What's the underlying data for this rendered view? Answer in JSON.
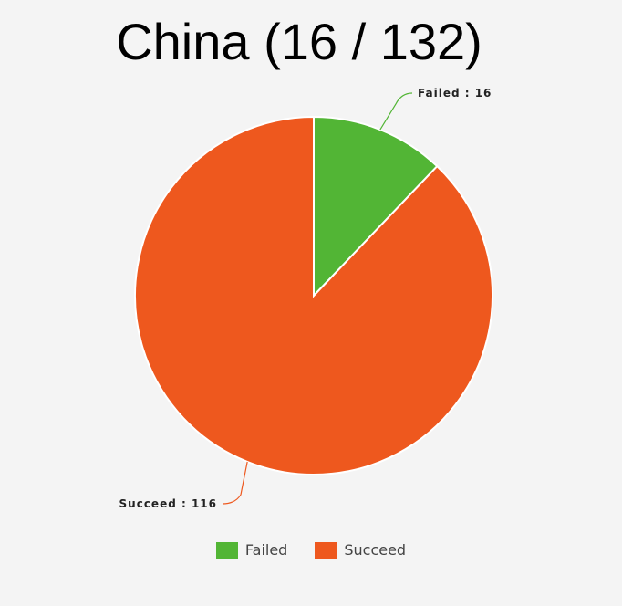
{
  "chart_data": {
    "type": "pie",
    "title": "China (16 / 132)",
    "categories": [
      "Failed",
      "Succeed"
    ],
    "values": [
      16,
      116
    ],
    "colors": [
      "#52b535",
      "#ee581e"
    ],
    "slice_labels": [
      "Failed : 16",
      "Succeed : 116"
    ],
    "legend_position": "bottom"
  },
  "legend": {
    "items": [
      {
        "label": "Failed",
        "color": "#52b535"
      },
      {
        "label": "Succeed",
        "color": "#ee581e"
      }
    ]
  }
}
